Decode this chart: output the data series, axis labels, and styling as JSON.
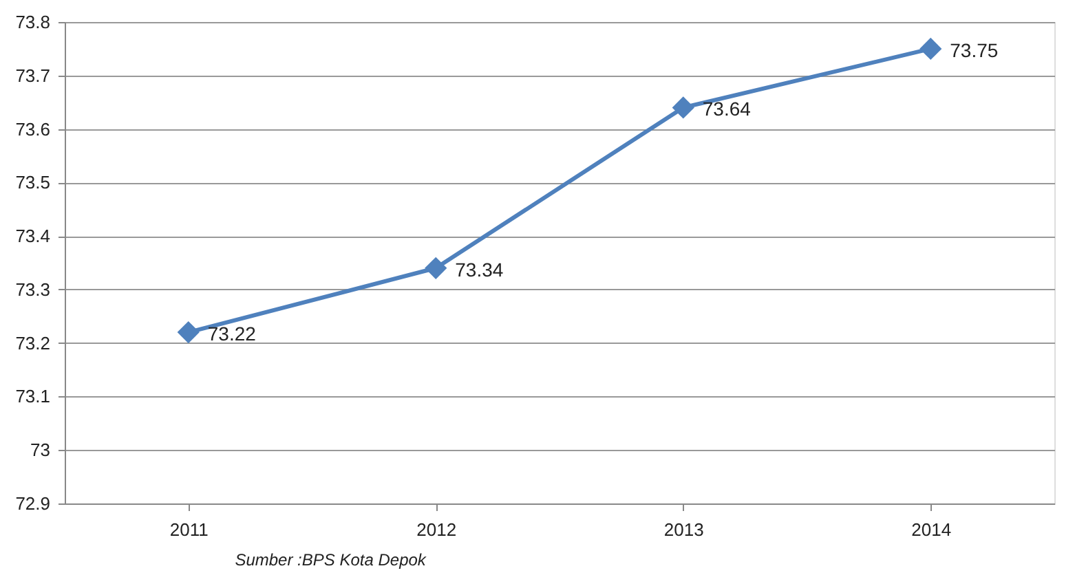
{
  "chart_data": {
    "type": "line",
    "categories": [
      "2011",
      "2012",
      "2013",
      "2014"
    ],
    "series": [
      {
        "color": "#4f81bd",
        "values": [
          73.22,
          73.34,
          73.64,
          73.75
        ]
      }
    ],
    "ylim": [
      72.9,
      73.8
    ],
    "yticks": [
      72.9,
      73,
      73.1,
      73.2,
      73.3,
      73.4,
      73.5,
      73.6,
      73.7,
      73.8
    ],
    "grid": "y",
    "marker": "diamond",
    "line_style": "solid",
    "data_labels": true,
    "annotations": [
      "Sumber :BPS Kota Depok"
    ]
  }
}
